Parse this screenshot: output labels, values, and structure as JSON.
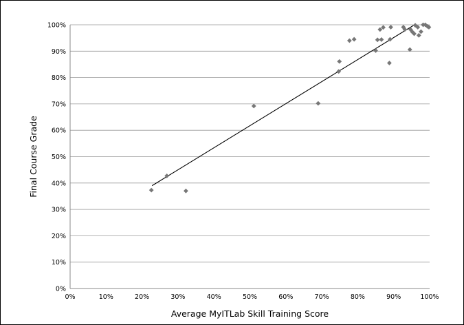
{
  "chart_data": {
    "type": "scatter",
    "title": "",
    "xlabel": "Average MyITLab Skill Training Score",
    "ylabel": "Final Course Grade",
    "xlim": [
      0,
      1
    ],
    "ylim": [
      0,
      1
    ],
    "x_ticks": [
      "0%",
      "10%",
      "20%",
      "30%",
      "40%",
      "50%",
      "60%",
      "70%",
      "80%",
      "90%",
      "100%"
    ],
    "y_ticks": [
      "0%",
      "10%",
      "20%",
      "30%",
      "40%",
      "50%",
      "60%",
      "70%",
      "80%",
      "90%",
      "100%"
    ],
    "grid": "horizontal",
    "legend": "none",
    "marker": "diamond",
    "colors": {
      "points": "#777777",
      "trendline": "#000000",
      "grid": "#999999",
      "axis": "#888888"
    },
    "points": [
      [
        0.226,
        0.373
      ],
      [
        0.269,
        0.427
      ],
      [
        0.322,
        0.37
      ],
      [
        0.511,
        0.692
      ],
      [
        0.69,
        0.702
      ],
      [
        0.747,
        0.823
      ],
      [
        0.749,
        0.861
      ],
      [
        0.777,
        0.94
      ],
      [
        0.79,
        0.945
      ],
      [
        0.85,
        0.902
      ],
      [
        0.855,
        0.943
      ],
      [
        0.862,
        0.982
      ],
      [
        0.866,
        0.944
      ],
      [
        0.871,
        0.99
      ],
      [
        0.888,
        0.855
      ],
      [
        0.89,
        0.945
      ],
      [
        0.892,
        0.991
      ],
      [
        0.927,
        0.991
      ],
      [
        0.931,
        0.982
      ],
      [
        0.945,
        0.906
      ],
      [
        0.947,
        0.982
      ],
      [
        0.952,
        0.973
      ],
      [
        0.957,
        0.966
      ],
      [
        0.96,
        0.998
      ],
      [
        0.967,
        0.991
      ],
      [
        0.97,
        0.96
      ],
      [
        0.976,
        0.974
      ],
      [
        0.982,
        1.0
      ],
      [
        0.988,
        1.0
      ],
      [
        0.994,
        0.994
      ],
      [
        0.998,
        0.991
      ]
    ],
    "trendline": {
      "type": "linear",
      "x": [
        0.228,
        0.958
      ],
      "y": [
        0.39,
        1.0
      ]
    }
  }
}
